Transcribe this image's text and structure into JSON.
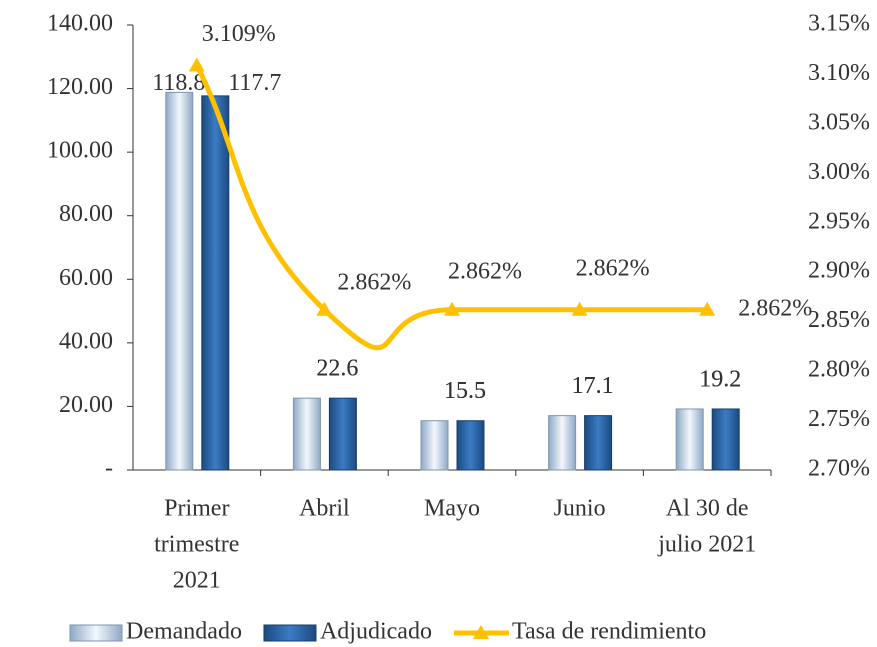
{
  "chart_data": {
    "type": "bar",
    "categories": [
      [
        "Primer",
        "trimestre",
        "2021"
      ],
      [
        "Abril"
      ],
      [
        "Mayo"
      ],
      [
        "Junio"
      ],
      [
        "Al 30 de",
        "julio 2021"
      ]
    ],
    "series": [
      {
        "name": "Demandado",
        "color": "#c9dcef",
        "values": [
          118.8,
          22.6,
          15.5,
          17.1,
          19.2
        ]
      },
      {
        "name": "Adjudicado",
        "color": "#2e6aad",
        "values": [
          117.7,
          22.6,
          15.5,
          17.1,
          19.2
        ]
      },
      {
        "name": "Tasa de rendimiento",
        "color": "#ffc000",
        "type": "line",
        "axis": "y2",
        "values": [
          3.109,
          2.862,
          2.862,
          2.862,
          2.862
        ],
        "value_labels": [
          "3.109%",
          "2.862%",
          "2.862%",
          "2.862%",
          "2.862%"
        ]
      }
    ],
    "ylim": [
      0,
      140
    ],
    "yticks": [
      {
        "value": 0,
        "label": "-"
      },
      {
        "value": 20,
        "label": "20.00"
      },
      {
        "value": 40,
        "label": "40.00"
      },
      {
        "value": 60,
        "label": "60.00"
      },
      {
        "value": 80,
        "label": "80.00"
      },
      {
        "value": 100,
        "label": "100.00"
      },
      {
        "value": 120,
        "label": "120.00"
      },
      {
        "value": 140,
        "label": "140.00"
      }
    ],
    "y2lim": [
      2.7,
      3.15
    ],
    "y2ticks": [
      {
        "value": 2.7,
        "label": "2.70%"
      },
      {
        "value": 2.75,
        "label": "2.75%"
      },
      {
        "value": 2.8,
        "label": "2.80%"
      },
      {
        "value": 2.85,
        "label": "2.85%"
      },
      {
        "value": 2.9,
        "label": "2.90%"
      },
      {
        "value": 2.95,
        "label": "2.95%"
      },
      {
        "value": 3.0,
        "label": "3.00%"
      },
      {
        "value": 3.05,
        "label": "3.05%"
      },
      {
        "value": 3.1,
        "label": "3.10%"
      },
      {
        "value": 3.15,
        "label": "3.15%"
      }
    ],
    "legend": "bottom"
  }
}
